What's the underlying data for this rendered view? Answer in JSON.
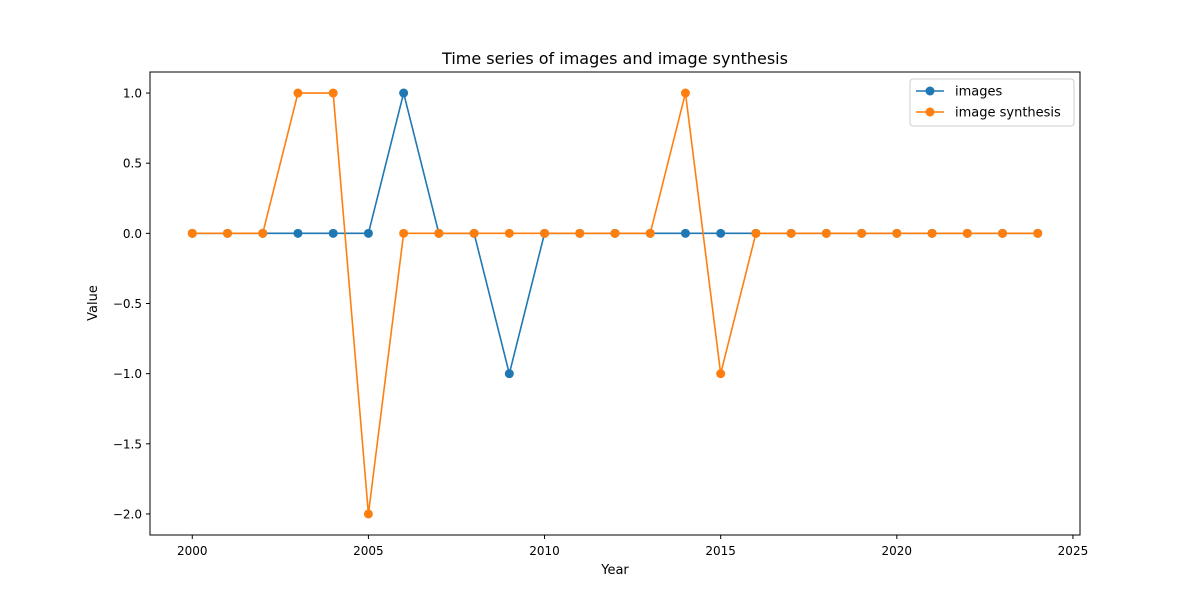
{
  "chart_data": {
    "type": "line",
    "title": "Time series of images and image synthesis",
    "xlabel": "Year",
    "ylabel": "Value",
    "x": [
      2000,
      2001,
      2002,
      2003,
      2004,
      2005,
      2006,
      2007,
      2008,
      2009,
      2010,
      2011,
      2012,
      2013,
      2014,
      2015,
      2016,
      2017,
      2018,
      2019,
      2020,
      2021,
      2022,
      2023,
      2024
    ],
    "xlim": [
      1998.8,
      2025.2
    ],
    "ylim": [
      -2.15,
      1.15
    ],
    "xticks": [
      2000,
      2005,
      2010,
      2015,
      2020,
      2025
    ],
    "yticks": [
      1.0,
      0.5,
      0.0,
      -0.5,
      -1.0,
      -1.5,
      -2.0
    ],
    "xtick_labels": [
      "2000",
      "2005",
      "2010",
      "2015",
      "2020",
      "2025"
    ],
    "ytick_labels": [
      "1.0",
      "0.5",
      "0.0",
      "−0.5",
      "−1.0",
      "−1.5",
      "−2.0"
    ],
    "grid": false,
    "legend_position": "top-right",
    "series": [
      {
        "name": "images",
        "color": "#1f77b4",
        "values": [
          0,
          0,
          0,
          0,
          0,
          0,
          1,
          0,
          0,
          -1,
          0,
          0,
          0,
          0,
          0,
          0,
          0,
          0,
          0,
          0,
          0,
          0,
          0,
          0,
          0
        ]
      },
      {
        "name": "image synthesis",
        "color": "#ff7f0e",
        "values": [
          0,
          0,
          0,
          1,
          1,
          -2,
          0,
          0,
          0,
          0,
          0,
          0,
          0,
          0,
          1,
          -1,
          0,
          0,
          0,
          0,
          0,
          0,
          0,
          0,
          0
        ]
      }
    ]
  }
}
